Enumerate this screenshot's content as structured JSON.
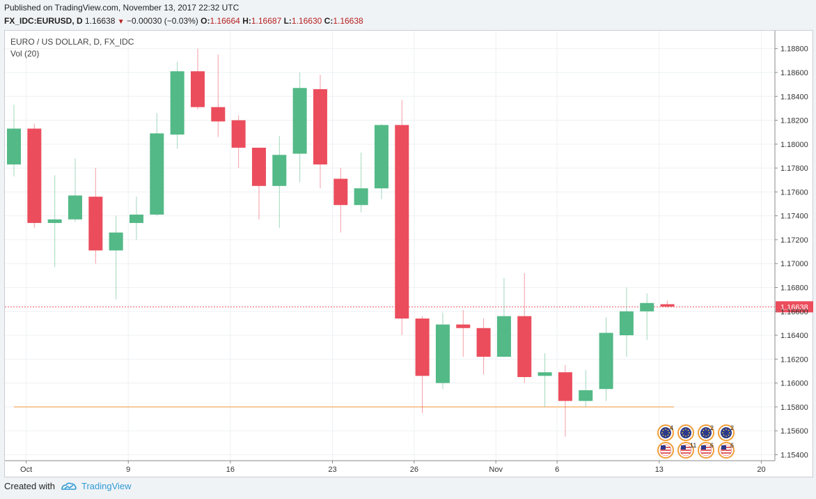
{
  "header": {
    "published": "Published on TradingView.com, November 13, 2017 22:32 UTC",
    "symbol": "FX_IDC:EURUSD, D",
    "last": "1.16638",
    "change": "−0.00030 (−0.03%)",
    "o_label": "O:",
    "o": "1.16664",
    "h_label": "H:",
    "h": "1.16687",
    "l_label": "L:",
    "l": "1.16630",
    "c_label": "C:",
    "c": "1.16638"
  },
  "legend": {
    "title": "EURO / US DOLLAR, D, FX_IDC",
    "vol": "Vol (20)"
  },
  "footer": {
    "created_with": "Created with",
    "brand": "TradingView"
  },
  "colors": {
    "up": "#53b987",
    "down": "#eb4d5c",
    "last_price_line": "#eb4d5c",
    "support_line": "#f5b77a",
    "grid": "#eef0f3",
    "event_badge": "#f29d38"
  },
  "chart_data": {
    "type": "candlestick",
    "y_range": [
      1.1535,
      1.1895
    ],
    "y_ticks": [
      "1.18800",
      "1.18600",
      "1.18400",
      "1.18200",
      "1.18000",
      "1.17800",
      "1.17600",
      "1.17400",
      "1.17200",
      "1.17000",
      "1.16800",
      "1.16600",
      "1.16400",
      "1.16200",
      "1.16000",
      "1.15800",
      "1.15600",
      "1.15400"
    ],
    "y_tick_values": [
      1.188,
      1.186,
      1.184,
      1.182,
      1.18,
      1.178,
      1.176,
      1.174,
      1.172,
      1.17,
      1.168,
      1.166,
      1.164,
      1.162,
      1.16,
      1.158,
      1.156,
      1.154
    ],
    "x_labels": [
      "Oct",
      "9",
      "16",
      "23",
      "26",
      "Nov",
      "6",
      "13",
      "20"
    ],
    "x_label_bars": [
      0.6,
      5.6,
      10.6,
      15.6,
      19.6,
      23.6,
      26.6,
      31.6,
      36.6
    ],
    "candles": [
      {
        "date": "2017-09-29",
        "o": 1.1783,
        "h": 1.1833,
        "l": 1.1773,
        "c": 1.1813
      },
      {
        "date": "2017-10-02",
        "o": 1.1813,
        "h": 1.1817,
        "l": 1.173,
        "c": 1.1734
      },
      {
        "date": "2017-10-03",
        "o": 1.1734,
        "h": 1.1774,
        "l": 1.1697,
        "c": 1.1737
      },
      {
        "date": "2017-10-04",
        "o": 1.1737,
        "h": 1.1788,
        "l": 1.1735,
        "c": 1.1757
      },
      {
        "date": "2017-10-05",
        "o": 1.1756,
        "h": 1.178,
        "l": 1.17,
        "c": 1.1711
      },
      {
        "date": "2017-10-06",
        "o": 1.1711,
        "h": 1.174,
        "l": 1.167,
        "c": 1.1726
      },
      {
        "date": "2017-10-09",
        "o": 1.1734,
        "h": 1.1756,
        "l": 1.172,
        "c": 1.1741
      },
      {
        "date": "2017-10-10",
        "o": 1.1741,
        "h": 1.1826,
        "l": 1.174,
        "c": 1.1809
      },
      {
        "date": "2017-10-11",
        "o": 1.1808,
        "h": 1.1869,
        "l": 1.1796,
        "c": 1.1861
      },
      {
        "date": "2017-10-12",
        "o": 1.1861,
        "h": 1.188,
        "l": 1.1829,
        "c": 1.1831
      },
      {
        "date": "2017-10-13",
        "o": 1.1831,
        "h": 1.1875,
        "l": 1.1806,
        "c": 1.1819
      },
      {
        "date": "2017-10-16",
        "o": 1.182,
        "h": 1.1824,
        "l": 1.178,
        "c": 1.1797
      },
      {
        "date": "2017-10-17",
        "o": 1.1797,
        "h": 1.1797,
        "l": 1.1737,
        "c": 1.1765
      },
      {
        "date": "2017-10-18",
        "o": 1.1765,
        "h": 1.1807,
        "l": 1.173,
        "c": 1.1791
      },
      {
        "date": "2017-10-19",
        "o": 1.1792,
        "h": 1.186,
        "l": 1.1768,
        "c": 1.1847
      },
      {
        "date": "2017-10-20",
        "o": 1.1846,
        "h": 1.1858,
        "l": 1.1763,
        "c": 1.1783
      },
      {
        "date": "2017-10-23",
        "o": 1.1771,
        "h": 1.178,
        "l": 1.1726,
        "c": 1.1749
      },
      {
        "date": "2017-10-24",
        "o": 1.1749,
        "h": 1.1793,
        "l": 1.1743,
        "c": 1.1763
      },
      {
        "date": "2017-10-25",
        "o": 1.1763,
        "h": 1.1817,
        "l": 1.1754,
        "c": 1.1816
      },
      {
        "date": "2017-10-26",
        "o": 1.1816,
        "h": 1.1837,
        "l": 1.164,
        "c": 1.1654
      },
      {
        "date": "2017-10-27",
        "o": 1.1654,
        "h": 1.1656,
        "l": 1.1575,
        "c": 1.1606
      },
      {
        "date": "2017-10-30",
        "o": 1.16,
        "h": 1.1659,
        "l": 1.1595,
        "c": 1.1649
      },
      {
        "date": "2017-10-31",
        "o": 1.1649,
        "h": 1.1661,
        "l": 1.1622,
        "c": 1.1646
      },
      {
        "date": "2017-11-01",
        "o": 1.1646,
        "h": 1.1654,
        "l": 1.1607,
        "c": 1.1622
      },
      {
        "date": "2017-11-02",
        "o": 1.1622,
        "h": 1.1688,
        "l": 1.1622,
        "c": 1.1656
      },
      {
        "date": "2017-11-03",
        "o": 1.1656,
        "h": 1.1692,
        "l": 1.16,
        "c": 1.1605
      },
      {
        "date": "2017-11-06",
        "o": 1.1606,
        "h": 1.1625,
        "l": 1.158,
        "c": 1.1609
      },
      {
        "date": "2017-11-07",
        "o": 1.1609,
        "h": 1.1615,
        "l": 1.1555,
        "c": 1.1585
      },
      {
        "date": "2017-11-08",
        "o": 1.1585,
        "h": 1.1611,
        "l": 1.158,
        "c": 1.1594
      },
      {
        "date": "2017-11-09",
        "o": 1.1595,
        "h": 1.1655,
        "l": 1.1585,
        "c": 1.1642
      },
      {
        "date": "2017-11-10",
        "o": 1.164,
        "h": 1.168,
        "l": 1.1622,
        "c": 1.166
      },
      {
        "date": "2017-11-13",
        "o": 1.166,
        "h": 1.1675,
        "l": 1.1636,
        "c": 1.1667
      },
      {
        "date": "2017-11-14",
        "o": 1.1666,
        "h": 1.1669,
        "l": 1.1663,
        "c": 1.1664
      }
    ],
    "last_price": 1.16638,
    "last_price_label": "1.16638",
    "support_level": 1.158,
    "grid": true,
    "event_badges": [
      {
        "row": 1,
        "label": "4"
      },
      {
        "row": 1,
        "label": ""
      },
      {
        "row": 1,
        "label": "2"
      },
      {
        "row": 1,
        "label": "2"
      },
      {
        "row": 2,
        "label": ""
      },
      {
        "row": 2,
        "label": "11"
      },
      {
        "row": 2,
        "label": "6"
      },
      {
        "row": 2,
        "label": "6"
      }
    ]
  }
}
